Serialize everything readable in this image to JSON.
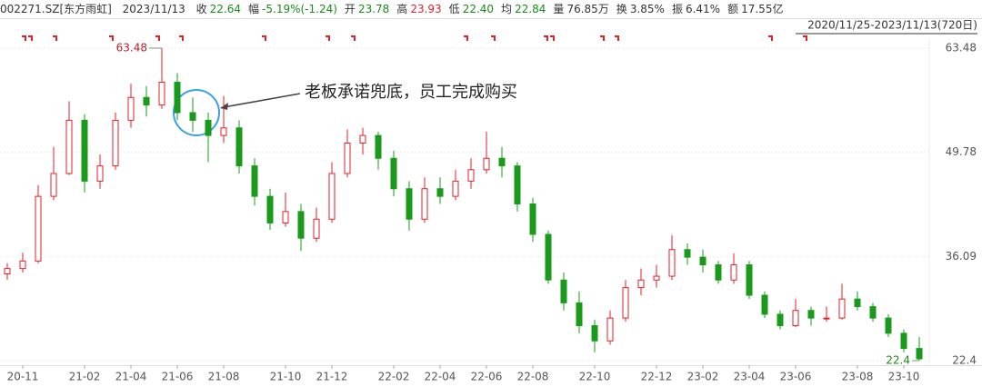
{
  "header": {
    "symbol": "002271.SZ[东方雨虹]",
    "date": "2023/11/13",
    "items": [
      {
        "label": "收",
        "value": "22.64",
        "tone": "green"
      },
      {
        "label": "幅",
        "value": "-5.19%(-1.24)",
        "tone": "green"
      },
      {
        "label": "开",
        "value": "23.78",
        "tone": "green"
      },
      {
        "label": "高",
        "value": "23.93",
        "tone": "red"
      },
      {
        "label": "低",
        "value": "22.40",
        "tone": "green"
      },
      {
        "label": "均",
        "value": "22.84",
        "tone": "green"
      },
      {
        "label": "量",
        "value": "76.85万",
        "tone": "plain"
      },
      {
        "label": "换",
        "value": "3.85%",
        "tone": "plain"
      },
      {
        "label": "振",
        "value": "6.41%",
        "tone": "plain"
      },
      {
        "label": "额",
        "value": "17.55亿",
        "tone": "plain"
      }
    ],
    "range": "2020/11/25-2023/11/13(720日)"
  },
  "chart_data": {
    "type": "candlestick",
    "annotation": "老板承诺兜底，员工完成购买",
    "up_color": "#e0202a",
    "down_color": "#1a9a1a",
    "categories": [
      null,
      "20-11",
      null,
      null,
      null,
      "21-02",
      null,
      null,
      "21-04",
      null,
      null,
      "21-06",
      null,
      null,
      "21-08",
      null,
      null,
      null,
      "21-10",
      null,
      null,
      "21-12",
      null,
      null,
      null,
      "22-02",
      null,
      null,
      "22-04",
      null,
      null,
      "22-06",
      null,
      null,
      "22-08",
      null,
      null,
      null,
      "22-10",
      null,
      null,
      null,
      "22-12",
      null,
      null,
      "23-02",
      null,
      null,
      "23-04",
      null,
      null,
      "23-06",
      null,
      null,
      null,
      "23-08",
      null,
      null,
      "23-10",
      null
    ],
    "open": [
      33.8,
      34.5,
      35.5,
      44,
      47,
      54,
      46,
      48,
      54,
      57,
      56,
      59,
      55,
      54,
      52,
      53,
      48,
      44,
      40.5,
      42,
      38.5,
      41,
      47,
      51,
      52,
      49,
      45,
      41,
      45,
      44,
      46,
      47.5,
      49,
      48,
      43,
      39,
      33,
      30,
      27,
      25,
      28,
      32,
      33,
      33.5,
      37,
      36,
      35,
      33,
      35,
      31,
      28.5,
      27,
      29,
      28,
      28,
      30.5,
      29.5,
      28,
      26,
      24
    ],
    "high": [
      35.2,
      36.6,
      45.5,
      50.5,
      56.5,
      54.8,
      49.5,
      55,
      58.8,
      58.5,
      63.48,
      60.2,
      57,
      55,
      57.2,
      54,
      49,
      45,
      44.5,
      43,
      42.5,
      48.5,
      52.8,
      53,
      52.5,
      50,
      46,
      46.5,
      46.5,
      47.5,
      49,
      52.5,
      50.5,
      48.5,
      43.8,
      39.5,
      34,
      31.5,
      27.8,
      29,
      33,
      34.5,
      35,
      38.9,
      37.8,
      37,
      35.5,
      36.5,
      35.5,
      31.5,
      29,
      30.5,
      29.5,
      29.5,
      32.5,
      31.5,
      30,
      28.5,
      26.5,
      25.5
    ],
    "low": [
      33,
      34,
      35.2,
      43.5,
      46.8,
      44.5,
      45,
      47.5,
      53,
      54.5,
      55.5,
      54,
      52.5,
      48.5,
      51,
      47,
      42.8,
      39.6,
      40,
      36.8,
      38,
      40.5,
      46.5,
      49.5,
      47.5,
      44,
      39.5,
      40.5,
      43,
      43.5,
      45,
      47,
      46.5,
      42,
      38,
      32.5,
      29,
      26,
      23.5,
      24.5,
      27.5,
      31,
      32,
      33,
      35,
      34,
      32.5,
      32.5,
      30.5,
      28,
      26.5,
      26.8,
      27,
      27.5,
      27.8,
      29,
      27.5,
      25.5,
      23.5,
      22.4
    ],
    "close": [
      34.5,
      35.5,
      44,
      47,
      54,
      46,
      48,
      54,
      57,
      56,
      59,
      55,
      54,
      52,
      53,
      48,
      44,
      40.5,
      42,
      38.5,
      41,
      47,
      51,
      52,
      49,
      45,
      41,
      45,
      44,
      46,
      47.5,
      49,
      48,
      43,
      39,
      33,
      30,
      27,
      25,
      28,
      32,
      33,
      33.5,
      37,
      36,
      35,
      33,
      35,
      31,
      28.5,
      27,
      29,
      28,
      28,
      30.5,
      29.5,
      28,
      26,
      24,
      22.64
    ],
    "ylim": [
      22.4,
      63.48
    ],
    "yticks": [
      22.4,
      36.09,
      49.78,
      63.48
    ],
    "grid": true
  }
}
